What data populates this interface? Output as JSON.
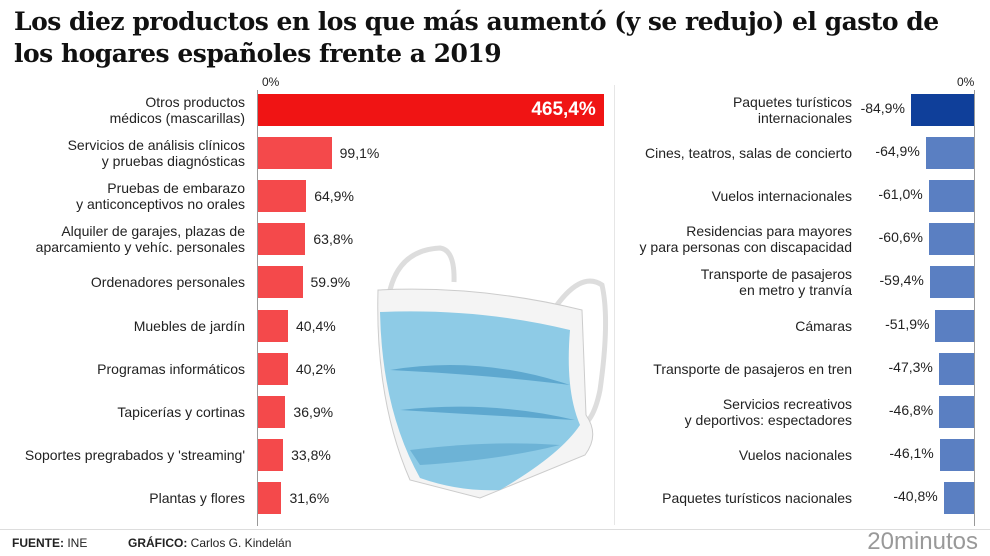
{
  "title": "Los diez productos en los que más aumentó (y se redujo) el gasto de los hogares españoles frente a 2019",
  "footer": {
    "source_label": "FUENTE:",
    "source": "INE",
    "credit_label": "GRÁFICO:",
    "credit": "Carlos G. Kindelán",
    "brand": "20minutos"
  },
  "chart_data": [
    {
      "type": "bar",
      "orientation": "horizontal",
      "zero_label": "0%",
      "categories": [
        "Otros productos médicos (mascarillas)",
        "Servicios de análisis clínicos y pruebas diagnósticas",
        "Pruebas de embarazo y anticonceptivos no orales",
        "Alquiler de garajes, plazas de aparcamiento y vehíc. personales",
        "Ordenadores personales",
        "Muebles de jardín",
        "Programas informáticos",
        "Tapicerías y cortinas",
        "Soportes pregrabados y 'streaming'",
        "Plantas y flores"
      ],
      "label_lines": [
        [
          "Otros productos",
          "médicos (mascarillas)"
        ],
        [
          "Servicios de análisis clínicos",
          "y pruebas diagnósticas"
        ],
        [
          "Pruebas de embarazo",
          "y anticonceptivos no orales"
        ],
        [
          "Alquiler de garajes, plazas de",
          "aparcamiento y vehíc. personales"
        ],
        [
          "Ordenadores personales"
        ],
        [
          "Muebles de jardín"
        ],
        [
          "Programas informáticos"
        ],
        [
          "Tapicerías y cortinas"
        ],
        [
          "Soportes pregrabados y 'streaming'"
        ],
        [
          "Plantas y flores"
        ]
      ],
      "values": [
        465.4,
        99.1,
        64.9,
        63.8,
        59.9,
        40.4,
        40.2,
        36.9,
        33.8,
        31.6
      ],
      "value_labels": [
        "465,4%",
        "99,1%",
        "64,9%",
        "63,8%",
        "59.9%",
        "40,4%",
        "40,2%",
        "36,9%",
        "33,8%",
        "31,6%"
      ],
      "colors": {
        "highlight": "#f01414",
        "default": "#f4494b"
      }
    },
    {
      "type": "bar",
      "orientation": "horizontal",
      "zero_label": "0%",
      "categories": [
        "Paquetes turísticos internacionales",
        "Cines, teatros, salas de concierto",
        "Vuelos internacionales",
        "Residencias para mayores y para personas con discapacidad",
        "Transporte de pasajeros en metro y tranvía",
        "Cámaras",
        "Transporte de pasajeros en tren",
        "Servicios recreativos y deportivos: espectadores",
        "Vuelos nacionales",
        "Paquetes turísticos nacionales"
      ],
      "label_lines": [
        [
          "Paquetes turísticos",
          "internacionales"
        ],
        [
          "Cines, teatros, salas de concierto"
        ],
        [
          "Vuelos internacionales"
        ],
        [
          "Residencias para mayores",
          "y para personas con discapacidad"
        ],
        [
          "Transporte de pasajeros",
          "en metro y tranvía"
        ],
        [
          "Cámaras"
        ],
        [
          "Transporte de pasajeros en tren"
        ],
        [
          "Servicios recreativos",
          "y deportivos: espectadores"
        ],
        [
          "Vuelos nacionales"
        ],
        [
          "Paquetes turísticos nacionales"
        ]
      ],
      "values": [
        -84.9,
        -64.9,
        -61.0,
        -60.6,
        -59.4,
        -51.9,
        -47.3,
        -46.8,
        -46.1,
        -40.8
      ],
      "value_labels": [
        "-84,9%",
        "-64,9%",
        "-61,0%",
        "-60,6%",
        "-59,4%",
        "-51,9%",
        "-47,3%",
        "-46,8%",
        "-46,1%",
        "-40,8%"
      ],
      "colors": {
        "highlight": "#0f3f9a",
        "default": "#5a7fc2"
      }
    }
  ]
}
